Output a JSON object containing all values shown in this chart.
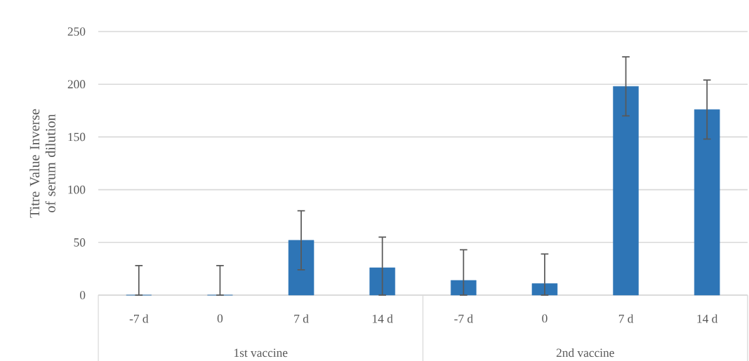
{
  "chart_data": {
    "type": "bar",
    "ylabel": "Titre Value Inverse of serum dilution",
    "categories": [
      "-7 d",
      "0",
      "7 d",
      "14 d",
      "-7 d",
      "0",
      "7 d",
      "14 d"
    ],
    "values": [
      0,
      0,
      52,
      26,
      14,
      11,
      198,
      176
    ],
    "errors": [
      [
        0,
        28
      ],
      [
        0,
        28
      ],
      28,
      [
        0,
        55
      ],
      [
        0,
        43
      ],
      [
        0,
        39
      ],
      28,
      28
    ],
    "color": "#2e75b6",
    "ylim": [
      0,
      250
    ],
    "yticks": [
      0,
      50,
      100,
      150,
      200,
      250
    ],
    "grid": "y",
    "annotations": [
      "1st vaccine",
      "2nd vaccine"
    ]
  }
}
